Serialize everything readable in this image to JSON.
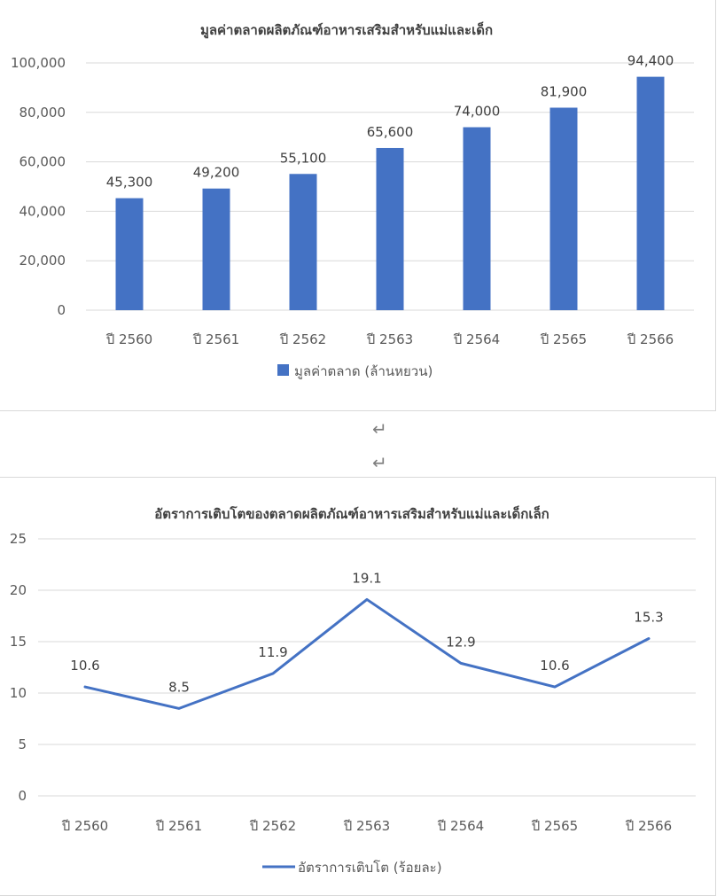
{
  "chart_data": [
    {
      "type": "bar",
      "title": "มูลค่าตลาดผลิตภัณฑ์อาหารเสริมสำหรับแม่และเด็ก",
      "categories": [
        "ปี 2560",
        "ปี 2561",
        "ปี 2562",
        "ปี 2563",
        "ปี 2564",
        "ปี 2565",
        "ปี 2566"
      ],
      "series": [
        {
          "name": "มูลค่าตลาด (ล้านหยวน)",
          "values": [
            45300,
            49200,
            55100,
            65600,
            74000,
            81900,
            94400
          ]
        }
      ],
      "data_labels": [
        "45,300",
        "49,200",
        "55,100",
        "65,600",
        "74,000",
        "81,900",
        "94,400"
      ],
      "yticks": [
        "0",
        "20,000",
        "40,000",
        "60,000",
        "80,000",
        "100,000"
      ],
      "ylim": [
        0,
        100000
      ],
      "grid": true,
      "legend": "bottom",
      "color": "#4472c4"
    },
    {
      "type": "line",
      "title": "อัตราการเติบโตของตลาดผลิตภัณฑ์อาหารเสริมสำหรับแม่และเด็กเล็ก",
      "categories": [
        "ปี 2560",
        "ปี 2561",
        "ปี 2562",
        "ปี 2563",
        "ปี 2564",
        "ปี 2565",
        "ปี 2566"
      ],
      "series": [
        {
          "name": "อัตราการเติบโต (ร้อยละ)",
          "values": [
            10.6,
            8.5,
            11.9,
            19.1,
            12.9,
            10.6,
            15.3
          ]
        }
      ],
      "data_labels": [
        "10.6",
        "8.5",
        "11.9",
        "19.1",
        "12.9",
        "10.6",
        "15.3"
      ],
      "yticks": [
        "0",
        "5",
        "10",
        "15",
        "20",
        "25"
      ],
      "ylim": [
        0,
        25
      ],
      "grid": true,
      "legend": "bottom",
      "color": "#4472c4"
    }
  ],
  "paragraph_marks": [
    "↵",
    "↵"
  ]
}
